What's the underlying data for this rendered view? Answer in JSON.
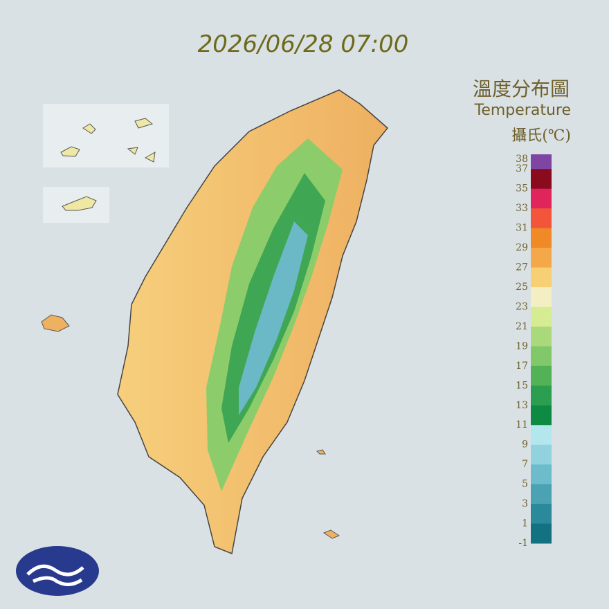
{
  "title": "2026/06/28 07:00",
  "legend": {
    "title": "溫度分布圖",
    "subtitle": "Temperature",
    "unit": "攝氏(℃)",
    "ticks": [
      38,
      37,
      35,
      33,
      31,
      29,
      27,
      25,
      23,
      21,
      19,
      17,
      15,
      13,
      11,
      9,
      7,
      5,
      3,
      1,
      -1
    ],
    "colors": [
      "#7e45a3",
      "#8a0a1e",
      "#e0245c",
      "#f2553a",
      "#f08a26",
      "#f4a84a",
      "#f7cf74",
      "#f3efc2",
      "#d6ec92",
      "#aad97c",
      "#80c86a",
      "#52b255",
      "#2c9e50",
      "#0f8a43",
      "#b4e6ee",
      "#92d2de",
      "#6cbccb",
      "#4aa2b3",
      "#2a8a9b",
      "#137282"
    ]
  }
}
